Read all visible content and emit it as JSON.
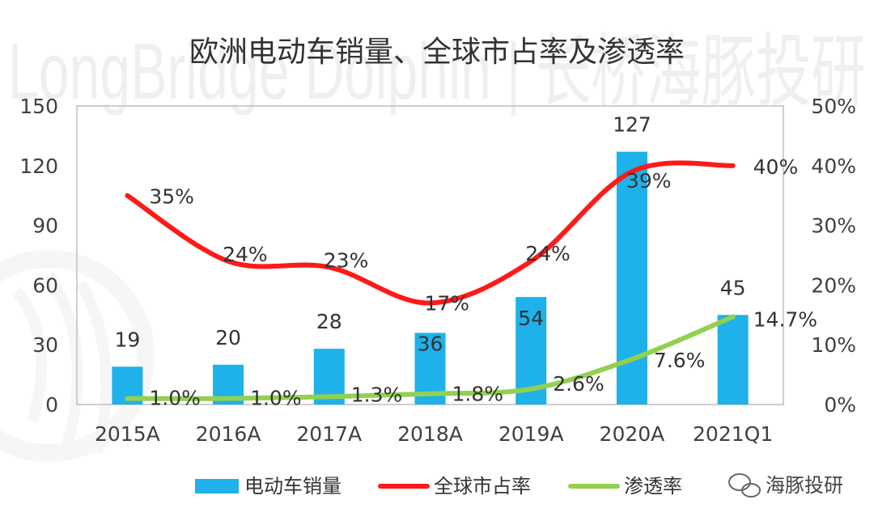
{
  "watermark": {
    "text": "LongBridge Dolphin | 长桥海豚投研",
    "source": "海豚投研"
  },
  "colors": {
    "bars": "#1EB1EA",
    "share_line": "#FF1A1A",
    "penetration_line": "#92D050",
    "axis_text": "#404040",
    "frame": "#BFBFBF"
  },
  "chart_data": {
    "type": "bar",
    "title": "欧洲电动车销量、全球市占率及渗透率",
    "categories": [
      "2015A",
      "2016A",
      "2017A",
      "2018A",
      "2019A",
      "2020A",
      "2021Q1"
    ],
    "y_left": {
      "min": 0,
      "max": 150,
      "ticks": [
        "0",
        "30",
        "60",
        "90",
        "120",
        "150"
      ]
    },
    "y_right": {
      "min": 0,
      "max": 0.5,
      "ticks": [
        "0%",
        "10%",
        "20%",
        "30%",
        "40%",
        "50%"
      ]
    },
    "series": [
      {
        "name": "电动车销量",
        "type": "bar",
        "axis": "left",
        "values": [
          19,
          20,
          28,
          36,
          54,
          127,
          45
        ],
        "labels": [
          "19",
          "20",
          "28",
          "36",
          "54",
          "127",
          "45"
        ]
      },
      {
        "name": "全球市占率",
        "type": "line",
        "axis": "right",
        "values": [
          0.35,
          0.24,
          0.23,
          0.17,
          0.24,
          0.39,
          0.4
        ],
        "labels": [
          "35%",
          "24%",
          "23%",
          "17%",
          "24%",
          "39%",
          "40%"
        ]
      },
      {
        "name": "渗透率",
        "type": "line",
        "axis": "right",
        "values": [
          0.01,
          0.01,
          0.013,
          0.018,
          0.026,
          0.076,
          0.147
        ],
        "labels": [
          "1.0%",
          "1.0%",
          "1.3%",
          "1.8%",
          "2.6%",
          "7.6%",
          "14.7%"
        ]
      }
    ],
    "grid": false,
    "legend": "bottom"
  }
}
